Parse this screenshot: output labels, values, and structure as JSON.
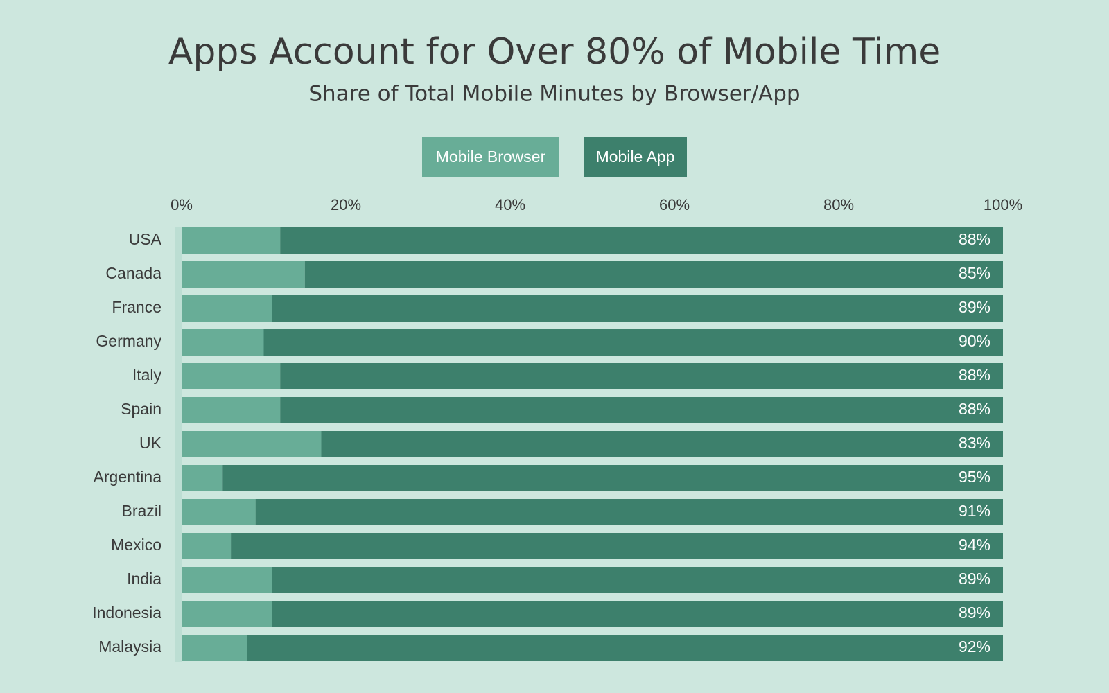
{
  "chart_data": {
    "type": "stacked-bar-horizontal",
    "title": "Apps Account for Over 80% of Mobile Time",
    "subtitle": "Share of Total Mobile Minutes by Browser/App",
    "categories": [
      "USA",
      "Canada",
      "France",
      "Germany",
      "Italy",
      "Spain",
      "UK",
      "Argentina",
      "Brazil",
      "Mexico",
      "India",
      "Indonesia",
      "Malaysia"
    ],
    "series": [
      {
        "name": "Mobile Browser",
        "color": "#68ad97",
        "values": [
          12,
          15,
          11,
          10,
          12,
          12,
          17,
          5,
          9,
          6,
          11,
          11,
          8
        ]
      },
      {
        "name": "Mobile App",
        "color": "#3d806c",
        "values": [
          88,
          85,
          89,
          90,
          88,
          88,
          83,
          95,
          91,
          94,
          89,
          89,
          92
        ],
        "value_labels": [
          "88%",
          "85%",
          "89%",
          "90%",
          "88%",
          "88%",
          "83%",
          "95%",
          "91%",
          "94%",
          "89%",
          "89%",
          "92%"
        ]
      }
    ],
    "xlim": [
      0,
      100
    ],
    "xticks": [
      {
        "value": 0,
        "label": "0%"
      },
      {
        "value": 20,
        "label": "20%"
      },
      {
        "value": 40,
        "label": "40%"
      },
      {
        "value": 60,
        "label": "60%"
      },
      {
        "value": 80,
        "label": "80%"
      },
      {
        "value": 100,
        "label": "100%"
      }
    ],
    "legend": "top"
  }
}
